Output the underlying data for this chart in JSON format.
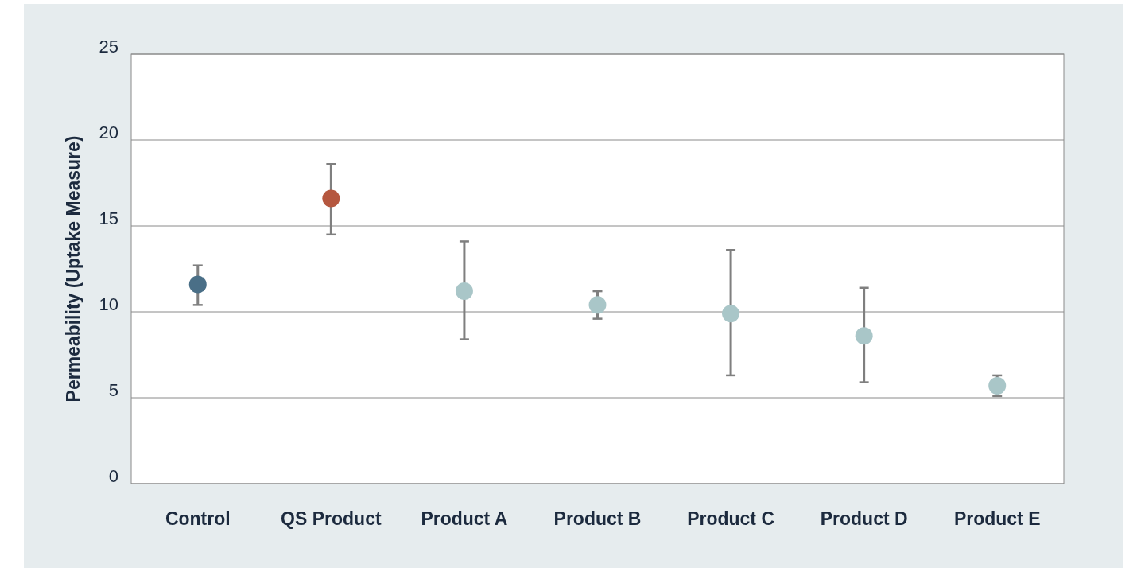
{
  "chart_data": {
    "type": "scatter",
    "ylabel": "Permeability (Uptake Measure)",
    "categories": [
      "Control",
      "QS Product",
      "Product A",
      "Product B",
      "Product C",
      "Product D",
      "Product E"
    ],
    "values": [
      11.6,
      16.6,
      11.2,
      10.4,
      9.9,
      8.6,
      5.7
    ],
    "errors": [
      [
        10.4,
        12.7
      ],
      [
        14.5,
        18.6
      ],
      [
        8.4,
        14.1
      ],
      [
        9.6,
        11.2
      ],
      [
        6.3,
        13.6
      ],
      [
        5.9,
        11.4
      ],
      [
        5.1,
        6.3
      ]
    ],
    "colors": [
      "#4a6f87",
      "#b5573f",
      "#a9c6c8",
      "#a9c6c8",
      "#a9c6c8",
      "#a9c6c8",
      "#a9c6c8"
    ],
    "ylim": [
      0,
      25
    ],
    "yticks": [
      0,
      5,
      10,
      15,
      20,
      25
    ],
    "grid": "y",
    "marker": "circle"
  }
}
